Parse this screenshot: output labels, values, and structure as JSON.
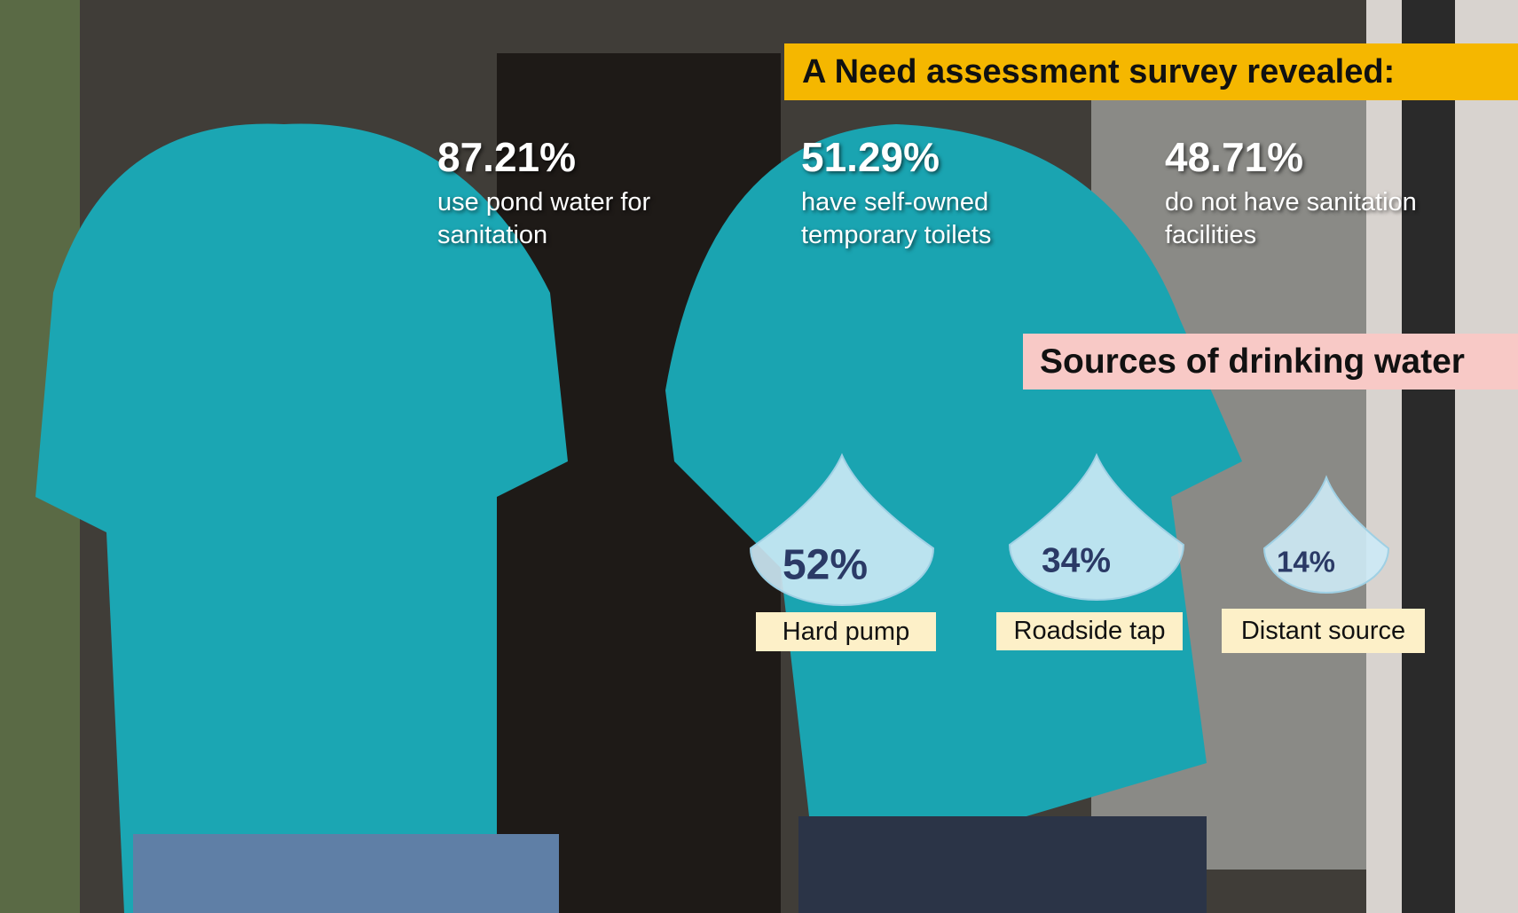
{
  "header": {
    "title": "A Need assessment survey revealed:"
  },
  "stats": [
    {
      "value": "87.21%",
      "label": "use pond water for sanitation"
    },
    {
      "value": "51.29%",
      "label": "have self-owned temporary toilets"
    },
    {
      "value": "48.71%",
      "label": "do not have sanitation facilities"
    }
  ],
  "sources": {
    "title": "Sources of drinking water",
    "items": [
      {
        "value": "52%",
        "label": "Hard pump"
      },
      {
        "value": "34%",
        "label": "Roadside tap"
      },
      {
        "value": "14%",
        "label": "Distant source"
      }
    ]
  }
}
